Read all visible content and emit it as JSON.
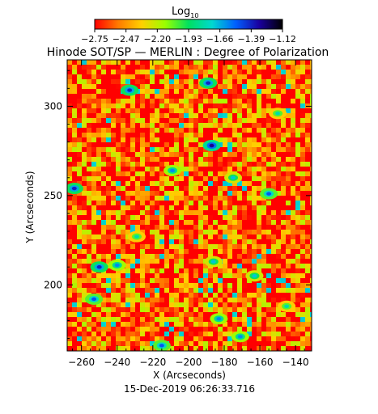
{
  "chart_data": {
    "type": "heatmap",
    "title": "Hinode SOT/SP — MERLIN : Degree of Polarization",
    "colorbar": {
      "label": "Log",
      "label_sub": "10",
      "tick_labels": [
        "−2.75",
        "−2.47",
        "−2.20",
        "−1.93",
        "−1.66",
        "−1.39",
        "−1.12"
      ],
      "range": [
        -2.75,
        -1.12
      ],
      "colormap": [
        "#ff0000",
        "#ff7a00",
        "#ffd000",
        "#9aff00",
        "#00e060",
        "#00d8d0",
        "#0060ff",
        "#1a00a0",
        "#000000"
      ]
    },
    "xlabel": "X (Arcseconds)",
    "ylabel": "Y (Arcseconds)",
    "xlim": [
      -268,
      -131
    ],
    "ylim": [
      163,
      326
    ],
    "xticks": [
      -260,
      -240,
      -220,
      -200,
      -180,
      -160,
      -140
    ],
    "yticks": [
      200,
      250,
      300
    ],
    "grid": false,
    "background_level": -2.6,
    "features": [
      {
        "x": -233,
        "y": 309,
        "level": -1.4
      },
      {
        "x": -189,
        "y": 313,
        "level": -1.4
      },
      {
        "x": -187,
        "y": 278,
        "level": -1.3
      },
      {
        "x": -209,
        "y": 264,
        "level": -1.6
      },
      {
        "x": -264,
        "y": 254,
        "level": -1.4
      },
      {
        "x": -175,
        "y": 260,
        "level": -1.7
      },
      {
        "x": -155,
        "y": 251,
        "level": -1.5
      },
      {
        "x": -250,
        "y": 210,
        "level": -1.4
      },
      {
        "x": -240,
        "y": 211,
        "level": -1.6
      },
      {
        "x": -253,
        "y": 192,
        "level": -1.5
      },
      {
        "x": -229,
        "y": 227,
        "level": -1.8
      },
      {
        "x": -186,
        "y": 213,
        "level": -1.7
      },
      {
        "x": -163,
        "y": 205,
        "level": -1.7
      },
      {
        "x": -183,
        "y": 181,
        "level": -1.6
      },
      {
        "x": -171,
        "y": 171,
        "level": -1.6
      },
      {
        "x": -215,
        "y": 166,
        "level": -1.5
      },
      {
        "x": -145,
        "y": 188,
        "level": -1.8
      },
      {
        "x": -150,
        "y": 296,
        "level": -1.8
      }
    ],
    "date_label": "15-Dec-2019 06:26:33.716"
  }
}
